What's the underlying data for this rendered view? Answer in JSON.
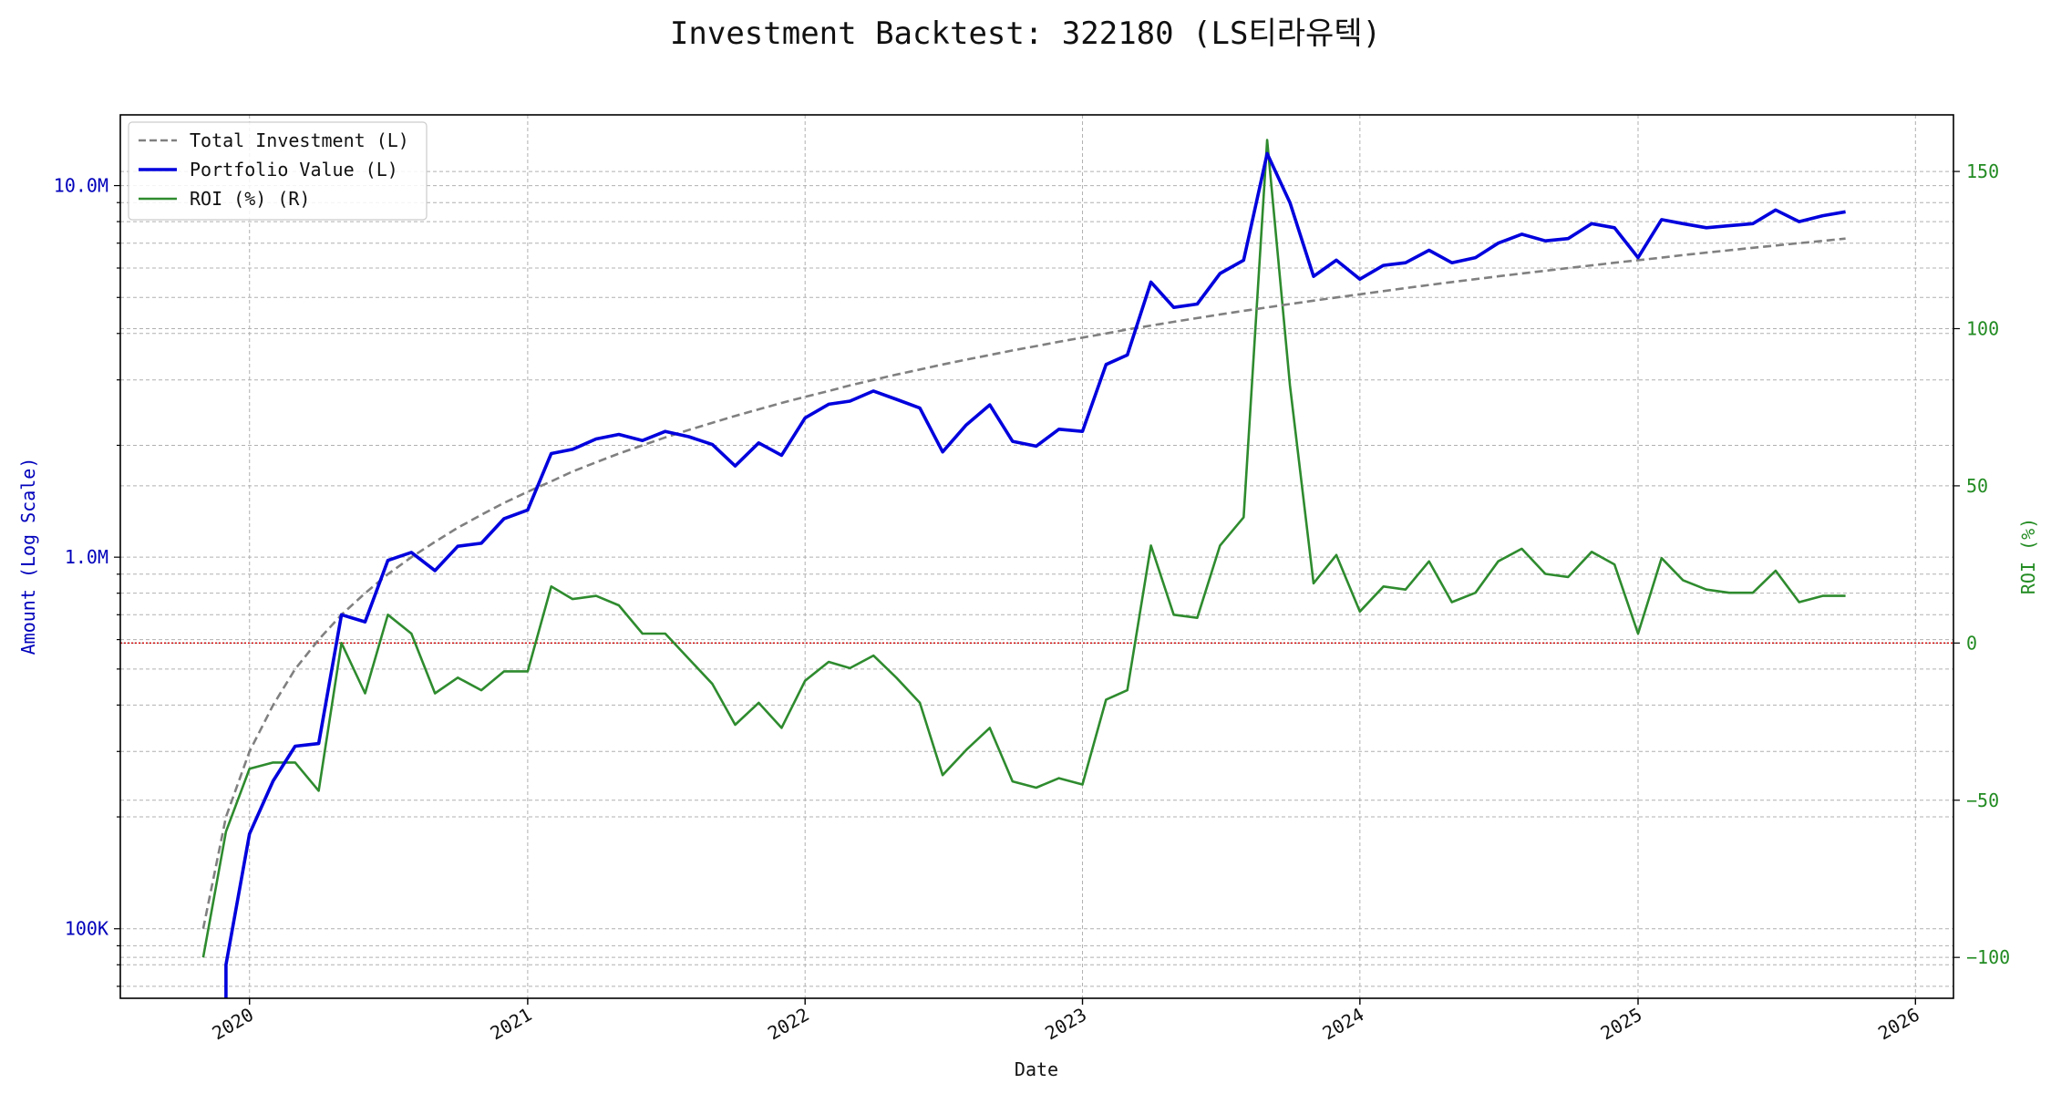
{
  "chart_data": {
    "type": "line",
    "title": "Investment Backtest: 322180 (LS티라유텍)",
    "xlabel": "Date",
    "ylabel_left": "Amount (Log Scale)",
    "ylabel_right": "ROI (%)",
    "left_scale": "log",
    "left_ylim": [
      65000,
      15500000
    ],
    "right_ylim": [
      -113,
      168
    ],
    "xlim": [
      "2019-07-15",
      "2026-02-20"
    ],
    "x_ticks": [
      "2020",
      "2021",
      "2022",
      "2023",
      "2024",
      "2025",
      "2026"
    ],
    "left_ticks": [
      {
        "value": 100000,
        "label": "100K"
      },
      {
        "value": 1000000,
        "label": "1.0M"
      },
      {
        "value": 10000000,
        "label": "10.0M"
      }
    ],
    "right_ticks": [
      {
        "value": -100,
        "label": "−100"
      },
      {
        "value": -50,
        "label": "−50"
      },
      {
        "value": 0,
        "label": "0"
      },
      {
        "value": 50,
        "label": "50"
      },
      {
        "value": 100,
        "label": "100"
      },
      {
        "value": 150,
        "label": "150"
      }
    ],
    "grid": true,
    "legend_position": "top-left",
    "legend": [
      "Total Investment (L)",
      "Portfolio Value (L)",
      "ROI (%) (R)"
    ],
    "colors": {
      "invest": "#808080",
      "portfolio": "#0000dd",
      "roi": "#2e8b2e",
      "zero_line": "#cc0000",
      "left_axis": "#0000bb",
      "right_axis": "#228b22"
    },
    "x": [
      "2019-11-01",
      "2019-12-01",
      "2020-01-01",
      "2020-02-01",
      "2020-03-01",
      "2020-04-01",
      "2020-05-01",
      "2020-06-01",
      "2020-07-01",
      "2020-08-01",
      "2020-09-01",
      "2020-10-01",
      "2020-11-01",
      "2020-12-01",
      "2021-01-01",
      "2021-02-01",
      "2021-03-01",
      "2021-04-01",
      "2021-05-01",
      "2021-06-01",
      "2021-07-01",
      "2021-08-01",
      "2021-09-01",
      "2021-10-01",
      "2021-11-01",
      "2021-12-01",
      "2022-01-01",
      "2022-02-01",
      "2022-03-01",
      "2022-04-01",
      "2022-05-01",
      "2022-06-01",
      "2022-07-01",
      "2022-08-01",
      "2022-09-01",
      "2022-10-01",
      "2022-11-01",
      "2022-12-01",
      "2023-01-01",
      "2023-02-01",
      "2023-03-01",
      "2023-04-01",
      "2023-05-01",
      "2023-06-01",
      "2023-07-01",
      "2023-08-01",
      "2023-09-01",
      "2023-10-01",
      "2023-11-01",
      "2023-12-01",
      "2024-01-01",
      "2024-02-01",
      "2024-03-01",
      "2024-04-01",
      "2024-05-01",
      "2024-06-01",
      "2024-07-01",
      "2024-08-01",
      "2024-09-01",
      "2024-10-01",
      "2024-11-01",
      "2024-12-01",
      "2025-01-01",
      "2025-02-01",
      "2025-03-01",
      "2025-04-01",
      "2025-05-01",
      "2025-06-01",
      "2025-07-01",
      "2025-08-01",
      "2025-09-01",
      "2025-10-01"
    ],
    "series": [
      {
        "name": "Total Investment (L)",
        "values": [
          100000,
          200000,
          300000,
          400000,
          500000,
          600000,
          700000,
          800000,
          900000,
          1000000,
          1100000,
          1200000,
          1300000,
          1400000,
          1500000,
          1600000,
          1700000,
          1800000,
          1900000,
          2000000,
          2100000,
          2200000,
          2300000,
          2400000,
          2500000,
          2600000,
          2700000,
          2800000,
          2900000,
          3000000,
          3100000,
          3200000,
          3300000,
          3400000,
          3500000,
          3600000,
          3700000,
          3800000,
          3900000,
          4000000,
          4100000,
          4200000,
          4300000,
          4400000,
          4500000,
          4600000,
          4700000,
          4800000,
          4900000,
          5000000,
          5100000,
          5200000,
          5300000,
          5400000,
          5500000,
          5600000,
          5700000,
          5800000,
          5900000,
          6000000,
          6100000,
          6200000,
          6300000,
          6400000,
          6500000,
          6600000,
          6700000,
          6800000,
          6900000,
          7000000,
          7100000,
          7200000
        ]
      },
      {
        "name": "Portfolio Value (L)",
        "values": [
          null,
          80000,
          180000,
          250000,
          310000,
          315000,
          700000,
          670000,
          980000,
          1030000,
          920000,
          1070000,
          1090000,
          1270000,
          1340000,
          1900000,
          1950000,
          2080000,
          2140000,
          2060000,
          2180000,
          2110000,
          2010000,
          1760000,
          2030000,
          1880000,
          2370000,
          2580000,
          2630000,
          2800000,
          2660000,
          2520000,
          1920000,
          2270000,
          2570000,
          2050000,
          1990000,
          2210000,
          2180000,
          3300000,
          3500000,
          5500000,
          4700000,
          4800000,
          5800000,
          6300000,
          12200000,
          9000000,
          5700000,
          6300000,
          5600000,
          6100000,
          6200000,
          6700000,
          6200000,
          6400000,
          7000000,
          7400000,
          7100000,
          7200000,
          7900000,
          7700000,
          6400000,
          8100000,
          7900000,
          7700000,
          7800000,
          7900000,
          8600000,
          8000000,
          8300000,
          8500000
        ]
      },
      {
        "name": "ROI (%) (R)",
        "values": [
          -100,
          -60,
          -40,
          -38,
          -38,
          -47,
          0,
          -16,
          9,
          3,
          -16,
          -11,
          -15,
          -9,
          -9,
          18,
          14,
          15,
          12,
          3,
          3,
          -5,
          -13,
          -26,
          -19,
          -27,
          -12,
          -6,
          -8,
          -4,
          -11,
          -19,
          -42,
          -34,
          -27,
          -44,
          -46,
          -43,
          -45,
          -18,
          -15,
          31,
          9,
          8,
          31,
          40,
          160,
          82,
          19,
          28,
          10,
          18,
          17,
          26,
          13,
          16,
          26,
          30,
          22,
          21,
          29,
          25,
          3,
          27,
          20,
          17,
          16,
          16,
          23,
          13,
          15,
          15
        ]
      }
    ]
  }
}
